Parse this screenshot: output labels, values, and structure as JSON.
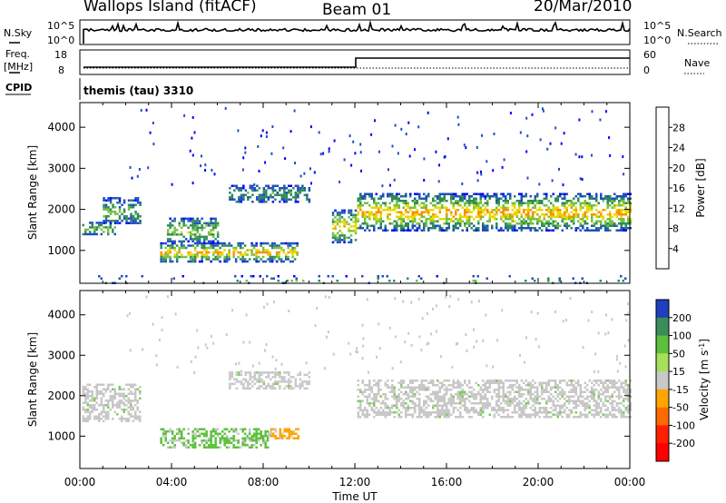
{
  "header": {
    "station": "Wallops Island (fitACF)",
    "beam": "Beam 01",
    "date": "20/Mar/2010"
  },
  "top_panels": {
    "nsky_label": "N.Sky",
    "nsky_ticks": [
      "10^5",
      "10^0"
    ],
    "nsearch_label": "N.Search",
    "freq_label_top": "Freq.",
    "freq_label_unit": "[MHz]",
    "freq_ticks": [
      "18",
      "8"
    ],
    "nave_label": "Nave",
    "nave_ticks": [
      "60",
      "0"
    ],
    "cpid_label": "CPID",
    "cpid_text": "themis (tau) 3310"
  },
  "chart_data": [
    {
      "type": "heatmap",
      "name": "power",
      "ylabel": "Slant Range [km]",
      "y_ticks": [
        1000,
        2000,
        3000,
        4000
      ],
      "ylim": [
        200,
        4600
      ],
      "xlim": [
        0,
        24
      ],
      "colorbar_label": "Power [dB]",
      "colorbar_ticks": [
        "4",
        "8",
        "12",
        "16",
        "20",
        "24",
        "28"
      ],
      "colorbar_colors": [
        "#0000ff",
        "#1f4fbf",
        "#2e8b57",
        "#76c043",
        "#e8d800",
        "#ff8c00",
        "#ff4500",
        "#ff0000"
      ],
      "features": [
        {
          "t0": 0.1,
          "t1": 1.5,
          "r0": 1400,
          "r1": 1700,
          "level": 10
        },
        {
          "t0": 1.0,
          "t1": 2.6,
          "r0": 1650,
          "r1": 2300,
          "level": 8
        },
        {
          "t0": 3.5,
          "t1": 9.5,
          "r0": 750,
          "r1": 1200,
          "level": 16
        },
        {
          "t0": 3.8,
          "t1": 6.0,
          "r0": 1200,
          "r1": 1800,
          "level": 10
        },
        {
          "t0": 6.5,
          "t1": 10.0,
          "r0": 2200,
          "r1": 2600,
          "level": 6
        },
        {
          "t0": 11.0,
          "t1": 12.0,
          "r0": 1200,
          "r1": 2000,
          "level": 14
        },
        {
          "t0": 12.1,
          "t1": 24.0,
          "r0": 1500,
          "r1": 2400,
          "level": 16
        },
        {
          "t0": 0.0,
          "t1": 24.0,
          "r0": 200,
          "r1": 400,
          "level": 6
        }
      ]
    },
    {
      "type": "heatmap",
      "name": "velocity",
      "ylabel": "Slant Range [km]",
      "y_ticks": [
        1000,
        2000,
        3000,
        4000
      ],
      "ylim": [
        200,
        4600
      ],
      "xlim": [
        0,
        24
      ],
      "xlabel": "Time UT",
      "x_ticks": [
        "00:00",
        "04:00",
        "08:00",
        "12:00",
        "16:00",
        "20:00",
        "00:00"
      ],
      "colorbar_label": "Velocity [m s^-1]",
      "colorbar_ticks": [
        "200",
        "100",
        "50",
        "15",
        "-15",
        "-50",
        "-100",
        "-200"
      ],
      "colorbar_colors": [
        "#1e3fbf",
        "#3b8e5a",
        "#5cc03c",
        "#a6e05a",
        "#c8c8c8",
        "#ffa500",
        "#ff6a00",
        "#ff2000",
        "#ff0000"
      ],
      "features": [
        {
          "t0": 0.1,
          "t1": 2.6,
          "r0": 1400,
          "r1": 2300,
          "vel": "ground"
        },
        {
          "t0": 3.5,
          "t1": 8.2,
          "r0": 750,
          "r1": 1200,
          "vel": "green"
        },
        {
          "t0": 8.2,
          "t1": 9.5,
          "r0": 950,
          "r1": 1200,
          "vel": "orange"
        },
        {
          "t0": 6.5,
          "t1": 10.0,
          "r0": 2200,
          "r1": 2600,
          "vel": "ground"
        },
        {
          "t0": 12.1,
          "t1": 24.0,
          "r0": 1500,
          "r1": 2400,
          "vel": "ground"
        }
      ]
    }
  ]
}
